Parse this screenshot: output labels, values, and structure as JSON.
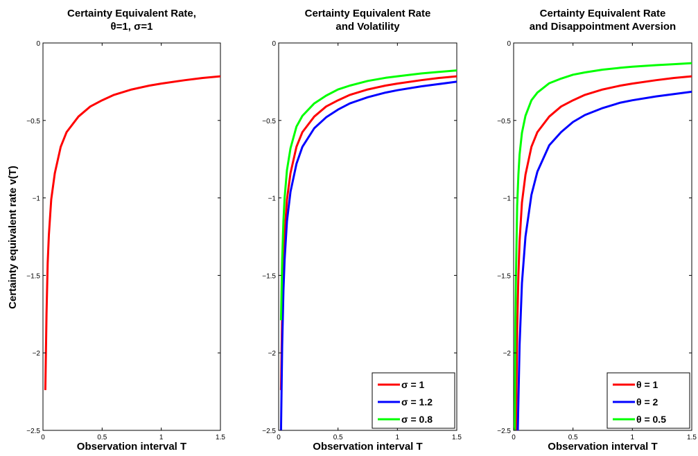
{
  "chart_data": [
    {
      "type": "line",
      "title": [
        "Certainty Equivalent Rate,",
        "θ=1, σ=1"
      ],
      "xlabel": "Observation interval T",
      "ylabel": "Certainty equivalent rate v(T)",
      "xlim": [
        0,
        1.5
      ],
      "ylim": [
        -2.5,
        0
      ],
      "xticks": [
        0,
        0.5,
        1,
        1.5
      ],
      "xtick_labels": [
        "0",
        "0.5",
        "1",
        "1.5"
      ],
      "yticks": [
        -2.5,
        -2,
        -1.5,
        -1,
        -0.5,
        0
      ],
      "ytick_labels": [
        "−2.5",
        "−2",
        "−1.5",
        "−1",
        "−0.5",
        "0"
      ],
      "grid": false,
      "legend": null,
      "series": [
        {
          "color": "#ff0000",
          "x": [
            0.02,
            0.03,
            0.04,
            0.05,
            0.07,
            0.1,
            0.15,
            0.2,
            0.3,
            0.4,
            0.5,
            0.6,
            0.75,
            0.9,
            1.0,
            1.2,
            1.35,
            1.5
          ],
          "y": [
            -2.24,
            -1.75,
            -1.42,
            -1.24,
            -1.01,
            -0.84,
            -0.67,
            -0.575,
            -0.475,
            -0.41,
            -0.37,
            -0.335,
            -0.3,
            -0.275,
            -0.262,
            -0.24,
            -0.226,
            -0.215
          ]
        }
      ]
    },
    {
      "type": "line",
      "title": [
        "Certainty Equivalent Rate",
        "and Volatility"
      ],
      "xlabel": "Observation interval T",
      "ylabel": "",
      "xlim": [
        0,
        1.5
      ],
      "ylim": [
        -2.5,
        0
      ],
      "xticks": [
        0,
        0.5,
        1,
        1.5
      ],
      "xtick_labels": [
        "0",
        "0.5",
        "1",
        "1.5"
      ],
      "yticks": [
        -2.5,
        -2,
        -1.5,
        -1,
        -0.5,
        0
      ],
      "ytick_labels": [
        "−2.5",
        "−2",
        "−1.5",
        "−1",
        "−0.5",
        "0"
      ],
      "grid": false,
      "legend": "bottom-right",
      "series": [
        {
          "name": "σ = 1",
          "color": "#ff0000",
          "x": [
            0.02,
            0.03,
            0.04,
            0.05,
            0.07,
            0.1,
            0.15,
            0.2,
            0.3,
            0.4,
            0.5,
            0.6,
            0.75,
            0.9,
            1.0,
            1.2,
            1.35,
            1.5
          ],
          "y": [
            -2.24,
            -1.75,
            -1.42,
            -1.24,
            -1.01,
            -0.84,
            -0.67,
            -0.575,
            -0.475,
            -0.41,
            -0.37,
            -0.335,
            -0.3,
            -0.275,
            -0.262,
            -0.24,
            -0.226,
            -0.215
          ]
        },
        {
          "name": "σ = 1.2",
          "color": "#0000ff",
          "x": [
            0.02,
            0.03,
            0.04,
            0.05,
            0.07,
            0.1,
            0.15,
            0.2,
            0.3,
            0.4,
            0.5,
            0.6,
            0.75,
            0.9,
            1.0,
            1.2,
            1.35,
            1.5
          ],
          "y": [
            -2.5,
            -1.95,
            -1.6,
            -1.4,
            -1.15,
            -0.96,
            -0.78,
            -0.67,
            -0.55,
            -0.48,
            -0.43,
            -0.39,
            -0.35,
            -0.32,
            -0.305,
            -0.28,
            -0.265,
            -0.25
          ]
        },
        {
          "name": "σ = 0.8",
          "color": "#00ff00",
          "x": [
            0.02,
            0.03,
            0.04,
            0.05,
            0.07,
            0.1,
            0.15,
            0.2,
            0.3,
            0.4,
            0.5,
            0.6,
            0.75,
            0.9,
            1.0,
            1.2,
            1.35,
            1.5
          ],
          "y": [
            -1.79,
            -1.4,
            -1.15,
            -1.0,
            -0.82,
            -0.68,
            -0.54,
            -0.47,
            -0.39,
            -0.34,
            -0.3,
            -0.275,
            -0.245,
            -0.225,
            -0.215,
            -0.197,
            -0.187,
            -0.177
          ]
        }
      ]
    },
    {
      "type": "line",
      "title": [
        "Certainty Equivalent Rate",
        "and Disappointment Aversion"
      ],
      "xlabel": "Observation interval T",
      "ylabel": "",
      "xlim": [
        0,
        1.5
      ],
      "ylim": [
        -2.5,
        0
      ],
      "xticks": [
        0,
        0.5,
        1,
        1.5
      ],
      "xtick_labels": [
        "0",
        "0.5",
        "1",
        "1.5"
      ],
      "yticks": [
        -2.5,
        -2,
        -1.5,
        -1,
        -0.5,
        0
      ],
      "ytick_labels": [
        "−2.5",
        "−2",
        "−1.5",
        "−1",
        "−0.5",
        "0"
      ],
      "grid": false,
      "legend": "bottom-right",
      "series": [
        {
          "name": "θ = 1",
          "color": "#ff0000",
          "x": [
            0.02,
            0.03,
            0.04,
            0.05,
            0.07,
            0.1,
            0.15,
            0.2,
            0.3,
            0.4,
            0.5,
            0.6,
            0.75,
            0.9,
            1.0,
            1.2,
            1.35,
            1.5
          ],
          "y": [
            -2.5,
            -1.85,
            -1.5,
            -1.28,
            -1.03,
            -0.85,
            -0.67,
            -0.575,
            -0.475,
            -0.41,
            -0.37,
            -0.335,
            -0.3,
            -0.275,
            -0.262,
            -0.24,
            -0.226,
            -0.215
          ]
        },
        {
          "name": "θ = 2",
          "color": "#0000ff",
          "x": [
            0.035,
            0.05,
            0.07,
            0.1,
            0.15,
            0.2,
            0.3,
            0.4,
            0.5,
            0.6,
            0.75,
            0.9,
            1.0,
            1.2,
            1.35,
            1.5
          ],
          "y": [
            -2.5,
            -1.95,
            -1.55,
            -1.25,
            -0.98,
            -0.83,
            -0.66,
            -0.575,
            -0.51,
            -0.465,
            -0.42,
            -0.385,
            -0.37,
            -0.345,
            -0.33,
            -0.315
          ]
        },
        {
          "name": "θ = 0.5",
          "color": "#00ff00",
          "x": [
            0.01,
            0.015,
            0.02,
            0.03,
            0.04,
            0.05,
            0.07,
            0.1,
            0.15,
            0.2,
            0.3,
            0.4,
            0.5,
            0.6,
            0.75,
            0.9,
            1.0,
            1.2,
            1.35,
            1.5
          ],
          "y": [
            -2.5,
            -1.8,
            -1.5,
            -1.05,
            -0.85,
            -0.72,
            -0.58,
            -0.47,
            -0.37,
            -0.32,
            -0.26,
            -0.23,
            -0.205,
            -0.19,
            -0.172,
            -0.16,
            -0.153,
            -0.143,
            -0.137,
            -0.13
          ]
        }
      ]
    }
  ]
}
